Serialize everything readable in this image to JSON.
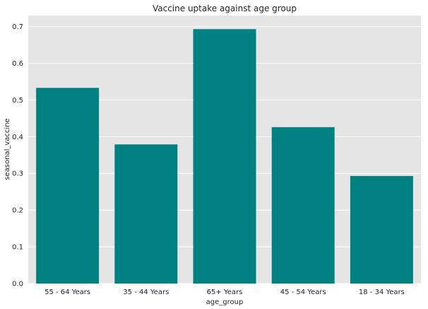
{
  "chart_data": {
    "type": "bar",
    "title": "Vaccine uptake against age group",
    "xlabel": "age_group",
    "ylabel": "seasonal_vaccine",
    "categories": [
      "55 - 64 Years",
      "35 - 44 Years",
      "65+ Years",
      "45 - 54 Years",
      "18 - 34 Years"
    ],
    "values": [
      0.533,
      0.379,
      0.693,
      0.426,
      0.293
    ],
    "ylim": [
      0,
      0.73
    ],
    "yticks": [
      0.0,
      0.1,
      0.2,
      0.3,
      0.4,
      0.5,
      0.6,
      0.7
    ],
    "ytick_labels": [
      "0.0",
      "0.1",
      "0.2",
      "0.3",
      "0.4",
      "0.5",
      "0.6",
      "0.7"
    ],
    "grid": true,
    "colors": {
      "bar": "#008080",
      "plot_background": "#e5e5e5",
      "grid": "#ffffff"
    }
  }
}
